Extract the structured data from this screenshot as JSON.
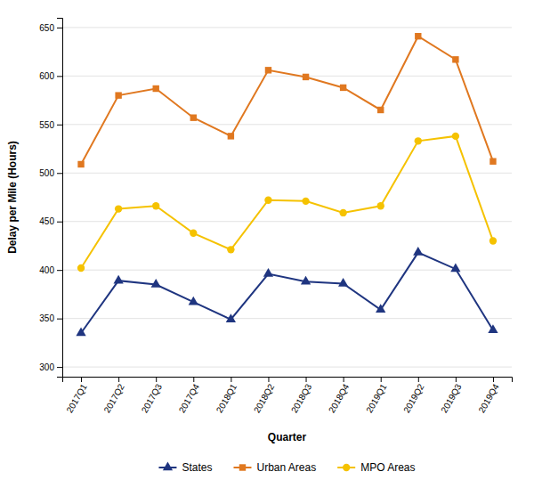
{
  "chart_data": {
    "type": "line",
    "categories": [
      "2017Q1",
      "2017Q2",
      "2017Q3",
      "2017Q4",
      "2018Q1",
      "2018Q2",
      "2018Q3",
      "2018Q4",
      "2019Q1",
      "2019Q2",
      "2019Q3",
      "2019Q4"
    ],
    "series": [
      {
        "name": "States",
        "color": "#1f3580",
        "marker": "triangle",
        "values": [
          335,
          389,
          385,
          367,
          349,
          396,
          388,
          386,
          359,
          418,
          401,
          338
        ]
      },
      {
        "name": "Urban Areas",
        "color": "#e07820",
        "marker": "square",
        "values": [
          509,
          580,
          587,
          557,
          538,
          606,
          599,
          588,
          565,
          641,
          617,
          512
        ]
      },
      {
        "name": "MPO Areas",
        "color": "#f5c200",
        "marker": "circle",
        "values": [
          402,
          463,
          466,
          438,
          421,
          472,
          471,
          459,
          466,
          533,
          538,
          430
        ]
      }
    ],
    "xlabel": "Quarter",
    "ylabel": "Delay per Mile (Hours)",
    "ylim": [
      290,
      660
    ],
    "yticks": [
      300,
      350,
      400,
      450,
      500,
      550,
      600,
      650
    ],
    "grid": true,
    "legend": "bottom"
  }
}
